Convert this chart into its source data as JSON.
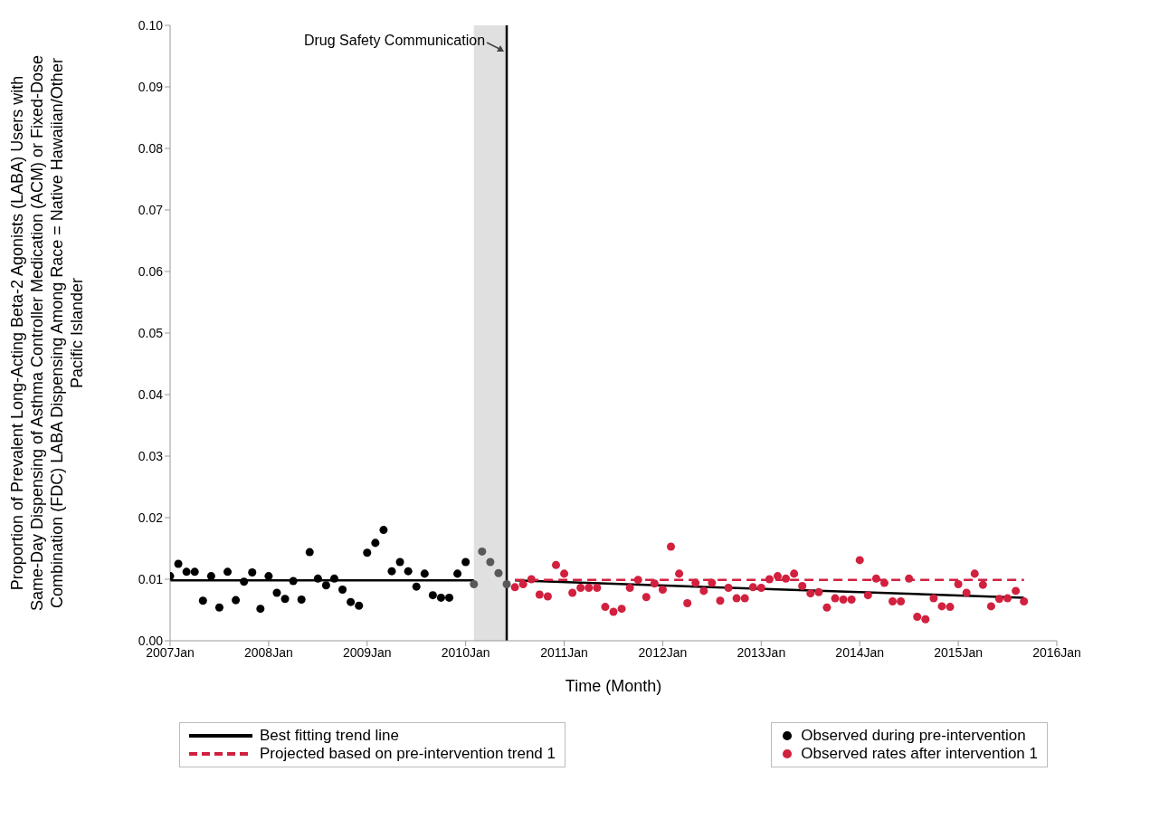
{
  "chart_data": {
    "type": "scatter",
    "xlabel": "Time (Month)",
    "ylabel": "Proportion of Prevalent Long-Acting Beta-2 Agonists (LABA) Users with Same-Day Dispensing of Asthma Controller Medication (ACM) or Fixed-Dose Combination (FDC) LABA Dispensing Among Race = Native Hawaiian/Other Pacific Islander",
    "xlim": [
      "2007-01",
      "2016-01"
    ],
    "xticks": [
      {
        "value": "2007-01",
        "label": "2007Jan"
      },
      {
        "value": "2008-01",
        "label": "2008Jan"
      },
      {
        "value": "2009-01",
        "label": "2009Jan"
      },
      {
        "value": "2010-01",
        "label": "2010Jan"
      },
      {
        "value": "2011-01",
        "label": "2011Jan"
      },
      {
        "value": "2012-01",
        "label": "2012Jan"
      },
      {
        "value": "2013-01",
        "label": "2013Jan"
      },
      {
        "value": "2014-01",
        "label": "2014Jan"
      },
      {
        "value": "2015-01",
        "label": "2015Jan"
      },
      {
        "value": "2016-01",
        "label": "2016Jan"
      }
    ],
    "ylim": [
      0,
      0.1
    ],
    "yticks": [
      {
        "value": 0,
        "label": "0.00"
      },
      {
        "value": 0.01,
        "label": "0.01"
      },
      {
        "value": 0.02,
        "label": "0.02"
      },
      {
        "value": 0.03,
        "label": "0.03"
      },
      {
        "value": 0.04,
        "label": "0.04"
      },
      {
        "value": 0.05,
        "label": "0.05"
      },
      {
        "value": 0.06,
        "label": "0.06"
      },
      {
        "value": 0.07,
        "label": "0.07"
      },
      {
        "value": 0.08,
        "label": "0.08"
      },
      {
        "value": 0.09,
        "label": "0.09"
      },
      {
        "value": 0.1,
        "label": "0.10"
      }
    ],
    "grid": false,
    "legend": "bottom",
    "bands": [
      {
        "axis": "x",
        "from": "2010-02",
        "to": "2010-06",
        "color": "#e0e0e0"
      }
    ],
    "ref_lines": [
      {
        "axis": "x",
        "value": "2010-06",
        "label": "Drug Safety Communication",
        "color": "#000000"
      }
    ],
    "series": [
      {
        "name": "Best fitting trend line",
        "type": "line",
        "color": "#000000",
        "line_style": "solid",
        "x": [
          "2007-01",
          "2010-02"
        ],
        "values": [
          0.0098,
          0.0098
        ]
      },
      {
        "type": "line",
        "color": "#000000",
        "line_style": "solid",
        "x": [
          "2010-07",
          "2015-09"
        ],
        "values": [
          0.0098,
          0.007
        ]
      },
      {
        "name": "Projected based on pre-intervention trend 1",
        "type": "line",
        "color": "#d2203f",
        "line_style": "dashed",
        "x": [
          "2010-07",
          "2015-09"
        ],
        "values": [
          0.0099,
          0.0099
        ]
      },
      {
        "name": "Observed during pre-intervention",
        "marker": "circle",
        "color": "#000000",
        "x": [
          "2007-01",
          "2007-02",
          "2007-03",
          "2007-04",
          "2007-05",
          "2007-06",
          "2007-07",
          "2007-08",
          "2007-09",
          "2007-10",
          "2007-11",
          "2007-12",
          "2008-01",
          "2008-02",
          "2008-03",
          "2008-04",
          "2008-05",
          "2008-06",
          "2008-07",
          "2008-08",
          "2008-09",
          "2008-10",
          "2008-11",
          "2008-12",
          "2009-01",
          "2009-02",
          "2009-03",
          "2009-04",
          "2009-05",
          "2009-06",
          "2009-07",
          "2009-08",
          "2009-09",
          "2009-10",
          "2009-11",
          "2009-12",
          "2010-01"
        ],
        "values": [
          0.0105,
          0.0125,
          0.0112,
          0.0112,
          0.0065,
          0.0105,
          0.0054,
          0.0112,
          0.0066,
          0.0096,
          0.0111,
          0.0052,
          0.0105,
          0.0078,
          0.0068,
          0.0097,
          0.0067,
          0.0144,
          0.0101,
          0.009,
          0.0101,
          0.0083,
          0.0063,
          0.0057,
          0.0143,
          0.0159,
          0.018,
          0.0113,
          0.0128,
          0.0113,
          0.0088,
          0.0109,
          0.0074,
          0.007,
          0.007,
          0.0109,
          0.0128
        ]
      },
      {
        "marker": "circle",
        "color": "#595959",
        "x": [
          "2010-02",
          "2010-03",
          "2010-04",
          "2010-05",
          "2010-06"
        ],
        "values": [
          0.0092,
          0.0145,
          0.0128,
          0.011,
          0.0092
        ]
      },
      {
        "name": "Observed rates after intervention 1",
        "marker": "circle",
        "color": "#d2203f",
        "x": [
          "2010-07",
          "2010-08",
          "2010-09",
          "2010-10",
          "2010-11",
          "2010-12",
          "2011-01",
          "2011-02",
          "2011-03",
          "2011-04",
          "2011-05",
          "2011-06",
          "2011-07",
          "2011-08",
          "2011-09",
          "2011-10",
          "2011-11",
          "2011-12",
          "2012-01",
          "2012-02",
          "2012-03",
          "2012-04",
          "2012-05",
          "2012-06",
          "2012-07",
          "2012-08",
          "2012-09",
          "2012-10",
          "2012-11",
          "2012-12",
          "2013-01",
          "2013-02",
          "2013-03",
          "2013-04",
          "2013-05",
          "2013-06",
          "2013-07",
          "2013-08",
          "2013-09",
          "2013-10",
          "2013-11",
          "2013-12",
          "2014-01",
          "2014-02",
          "2014-03",
          "2014-04",
          "2014-05",
          "2014-06",
          "2014-07",
          "2014-08",
          "2014-09",
          "2014-10",
          "2014-11",
          "2014-12",
          "2015-01",
          "2015-02",
          "2015-03",
          "2015-04",
          "2015-05",
          "2015-06",
          "2015-07",
          "2015-08",
          "2015-09"
        ],
        "values": [
          0.0087,
          0.0092,
          0.01,
          0.0075,
          0.0072,
          0.0123,
          0.0109,
          0.0078,
          0.0086,
          0.0086,
          0.0086,
          0.0055,
          0.0047,
          0.0052,
          0.0086,
          0.0099,
          0.0071,
          0.0093,
          0.0083,
          0.0153,
          0.0109,
          0.0061,
          0.0094,
          0.0081,
          0.0094,
          0.0065,
          0.0086,
          0.0069,
          0.0069,
          0.0087,
          0.0086,
          0.01,
          0.0105,
          0.0101,
          0.0109,
          0.0089,
          0.0077,
          0.0079,
          0.0054,
          0.0069,
          0.0067,
          0.0067,
          0.0131,
          0.0074,
          0.0101,
          0.0094,
          0.0064,
          0.0064,
          0.0101,
          0.0039,
          0.0035,
          0.0069,
          0.0056,
          0.0055,
          0.0092,
          0.0078,
          0.0109,
          0.0091,
          0.0056,
          0.0068,
          0.0069,
          0.0081,
          0.0064
        ]
      }
    ]
  }
}
